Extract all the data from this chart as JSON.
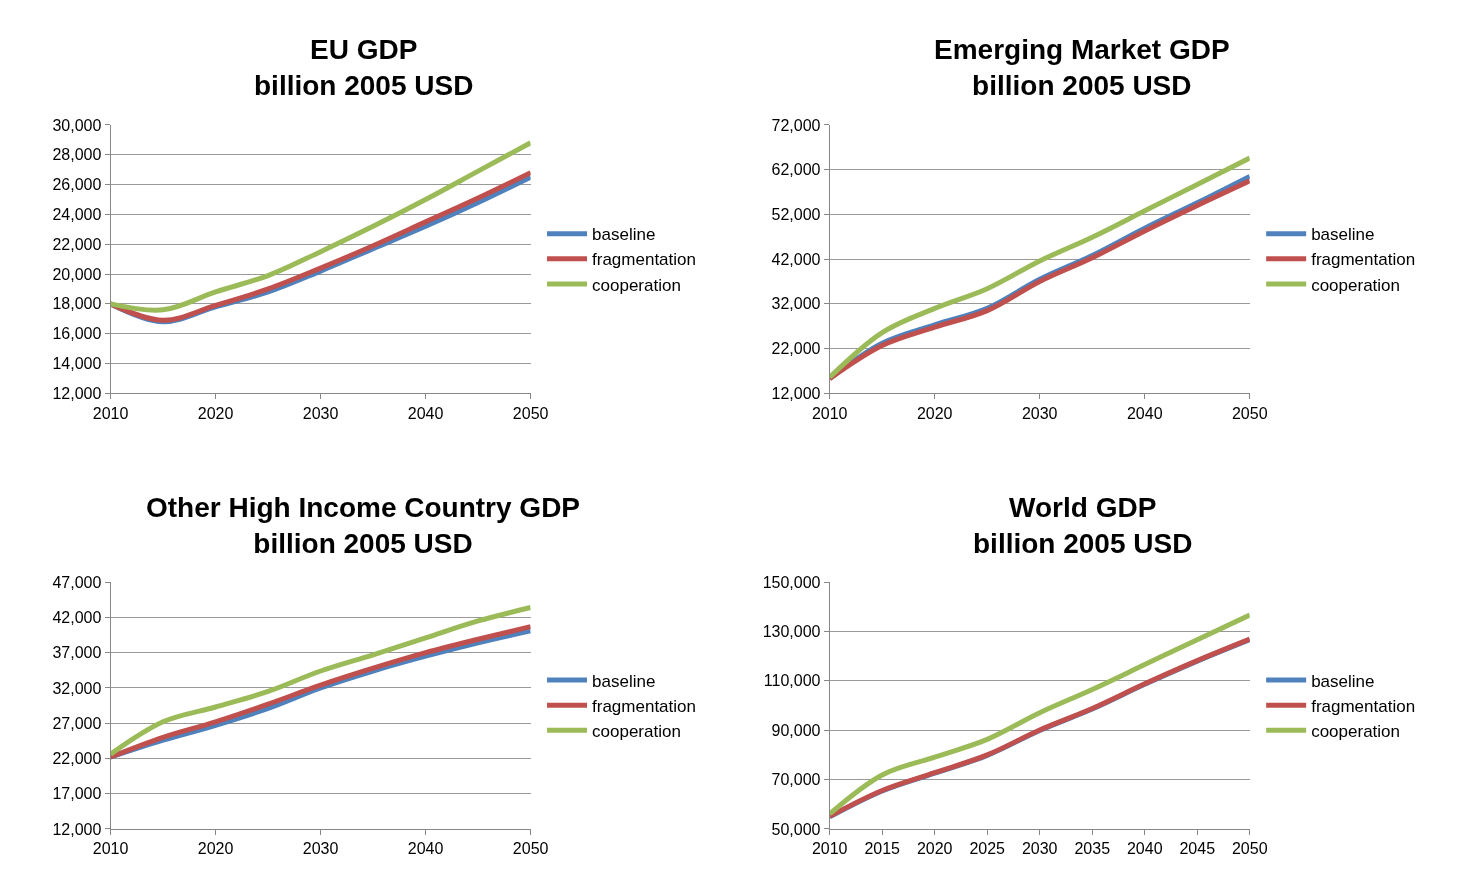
{
  "chart_data": [
    {
      "type": "line",
      "title": "EU GDP\nbillion 2005 USD",
      "x": [
        2010,
        2015,
        2020,
        2025,
        2030,
        2035,
        2040,
        2045,
        2050
      ],
      "xlim": [
        2010,
        2050
      ],
      "xticks": [
        2010,
        2020,
        2030,
        2040,
        2050
      ],
      "ylim": [
        12000,
        30000
      ],
      "yticks": [
        {
          "value": 12000,
          "label": "12,000"
        },
        {
          "value": 14000,
          "label": "14,000"
        },
        {
          "value": 16000,
          "label": "16,000"
        },
        {
          "value": 18000,
          "label": "18,000"
        },
        {
          "value": 20000,
          "label": "20,000"
        },
        {
          "value": 22000,
          "label": "22,000"
        },
        {
          "value": 24000,
          "label": "24,000"
        },
        {
          "value": 26000,
          "label": "26,000"
        },
        {
          "value": 28000,
          "label": "28,000"
        },
        {
          "value": 30000,
          "label": "30,000"
        }
      ],
      "grid": "y",
      "legend": "right",
      "marker": "none",
      "line_style": "solid",
      "series": [
        {
          "name": "baseline",
          "color": "#4f81bd",
          "values": [
            18000,
            16800,
            17800,
            18800,
            20200,
            21700,
            23200,
            24800,
            26500
          ]
        },
        {
          "name": "fragmentation",
          "color": "#c0504d",
          "values": [
            18000,
            16900,
            17900,
            19000,
            20400,
            21900,
            23500,
            25100,
            26800
          ]
        },
        {
          "name": "cooperation",
          "color": "#9bbb59",
          "values": [
            18000,
            17600,
            18800,
            19900,
            21500,
            23200,
            25000,
            26900,
            28800
          ]
        }
      ]
    },
    {
      "type": "line",
      "title": "Emerging Market GDP\nbillion 2005 USD",
      "x": [
        2010,
        2015,
        2020,
        2025,
        2030,
        2035,
        2040,
        2045,
        2050
      ],
      "xlim": [
        2010,
        2050
      ],
      "xticks": [
        2010,
        2020,
        2030,
        2040,
        2050
      ],
      "ylim": [
        12000,
        72000
      ],
      "yticks": [
        {
          "value": 12000,
          "label": "12,000"
        },
        {
          "value": 22000,
          "label": "22,000"
        },
        {
          "value": 32000,
          "label": "32,000"
        },
        {
          "value": 42000,
          "label": "42,000"
        },
        {
          "value": 52000,
          "label": "52,000"
        },
        {
          "value": 62000,
          "label": "62,000"
        },
        {
          "value": 72000,
          "label": "72,000"
        }
      ],
      "grid": "y",
      "legend": "right",
      "marker": "none",
      "line_style": "solid",
      "series": [
        {
          "name": "baseline",
          "color": "#4f81bd",
          "values": [
            15300,
            23200,
            27300,
            31000,
            37500,
            42800,
            48900,
            54600,
            60500
          ]
        },
        {
          "name": "fragmentation",
          "color": "#c0504d",
          "values": [
            15300,
            22700,
            26800,
            30500,
            37000,
            42300,
            48300,
            54000,
            59500
          ]
        },
        {
          "name": "cooperation",
          "color": "#9bbb59",
          "values": [
            15600,
            25600,
            31000,
            35400,
            41600,
            46900,
            52800,
            58700,
            64600
          ]
        }
      ]
    },
    {
      "type": "line",
      "title": "Other High Income Country GDP\nbillion 2005 USD",
      "x": [
        2010,
        2015,
        2020,
        2025,
        2030,
        2035,
        2040,
        2045,
        2050
      ],
      "xlim": [
        2010,
        2050
      ],
      "xticks": [
        2010,
        2020,
        2030,
        2040,
        2050
      ],
      "ylim": [
        12000,
        47000
      ],
      "yticks": [
        {
          "value": 12000,
          "label": "12,000"
        },
        {
          "value": 17000,
          "label": "17,000"
        },
        {
          "value": 22000,
          "label": "22,000"
        },
        {
          "value": 27000,
          "label": "27,000"
        },
        {
          "value": 32000,
          "label": "32,000"
        },
        {
          "value": 37000,
          "label": "37,000"
        },
        {
          "value": 42000,
          "label": "42,000"
        },
        {
          "value": 47000,
          "label": "47,000"
        }
      ],
      "grid": "y",
      "legend": "right",
      "marker": "none",
      "line_style": "solid",
      "series": [
        {
          "name": "baseline",
          "color": "#4f81bd",
          "values": [
            22200,
            24600,
            26700,
            29100,
            32000,
            34400,
            36500,
            38400,
            40100
          ]
        },
        {
          "name": "fragmentation",
          "color": "#c0504d",
          "values": [
            22200,
            25000,
            27200,
            29700,
            32400,
            34800,
            37000,
            38900,
            40700
          ]
        },
        {
          "name": "cooperation",
          "color": "#9bbb59",
          "values": [
            22600,
            27200,
            29300,
            31500,
            34400,
            36700,
            39100,
            41500,
            43400
          ]
        }
      ]
    },
    {
      "type": "line",
      "title": "World GDP\nbillion 2005 USD",
      "x": [
        2010,
        2015,
        2020,
        2025,
        2030,
        2035,
        2040,
        2045,
        2050
      ],
      "xlim": [
        2010,
        2050
      ],
      "xticks": [
        2010,
        2015,
        2020,
        2025,
        2030,
        2035,
        2040,
        2045,
        2050
      ],
      "ylim": [
        50000,
        150000
      ],
      "yticks": [
        {
          "value": 50000,
          "label": "50,000"
        },
        {
          "value": 70000,
          "label": "70,000"
        },
        {
          "value": 90000,
          "label": "90,000"
        },
        {
          "value": 110000,
          "label": "110,000"
        },
        {
          "value": 130000,
          "label": "130,000"
        },
        {
          "value": 150000,
          "label": "150,000"
        }
      ],
      "grid": "y",
      "legend": "right",
      "marker": "none",
      "line_style": "solid",
      "series": [
        {
          "name": "baseline",
          "color": "#4f81bd",
          "values": [
            54900,
            65400,
            72600,
            79800,
            89900,
            98600,
            108600,
            118000,
            126700
          ]
        },
        {
          "name": "fragmentation",
          "color": "#c0504d",
          "values": [
            55100,
            65600,
            72800,
            80000,
            90100,
            98800,
            108800,
            118200,
            126900
          ]
        },
        {
          "name": "cooperation",
          "color": "#9bbb59",
          "values": [
            56100,
            71900,
            79100,
            86300,
            97100,
            106500,
            116600,
            126700,
            136700
          ]
        }
      ]
    }
  ]
}
